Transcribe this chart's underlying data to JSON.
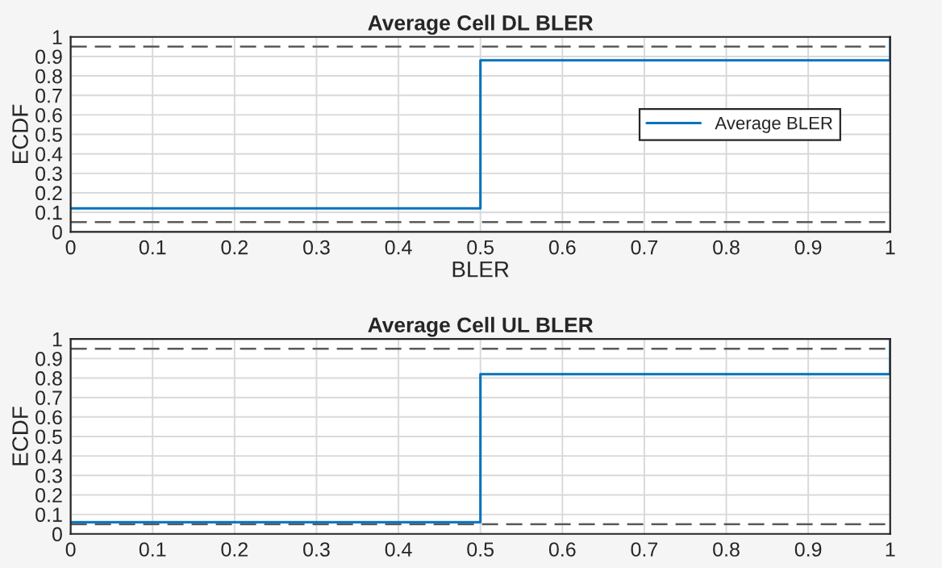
{
  "chart_data": [
    {
      "type": "step",
      "title": "Average Cell DL BLER",
      "xlabel": "BLER",
      "ylabel": "ECDF",
      "series": [
        {
          "name": "Average BLER",
          "color": "#0072bd",
          "x": [
            0,
            0.5,
            1
          ],
          "values": [
            0.12,
            0.88,
            1
          ]
        }
      ],
      "xlim": [
        0,
        1
      ],
      "xticks": [
        0,
        0.1,
        0.2,
        0.3,
        0.4,
        0.5,
        0.6,
        0.7,
        0.8,
        0.9,
        1
      ],
      "ylim": [
        0,
        1
      ],
      "yticks": [
        0,
        0.1,
        0.2,
        0.3,
        0.4,
        0.5,
        0.6,
        0.7,
        0.8,
        0.9,
        1
      ],
      "ref_lines": [
        {
          "axis": "y",
          "value": 0.05,
          "color": "#5a5a5a",
          "line_style": "dashed"
        },
        {
          "axis": "y",
          "value": 0.95,
          "color": "#5a5a5a",
          "line_style": "dashed"
        }
      ],
      "grid": true,
      "legend": "right"
    },
    {
      "type": "step",
      "title": "Average Cell UL BLER",
      "ylabel": "ECDF",
      "series": [
        {
          "color": "#0072bd",
          "x": [
            0,
            0.5,
            1
          ],
          "values": [
            0.06,
            0.82,
            1
          ]
        }
      ],
      "xlim": [
        0,
        1
      ],
      "xticks": [
        0,
        0.1,
        0.2,
        0.3,
        0.4,
        0.5,
        0.6,
        0.7,
        0.8,
        0.9,
        1
      ],
      "ylim": [
        0,
        1
      ],
      "yticks": [
        0,
        0.1,
        0.2,
        0.3,
        0.4,
        0.5,
        0.6,
        0.7,
        0.8,
        0.9,
        1
      ],
      "ref_lines": [
        {
          "axis": "y",
          "value": 0.05,
          "color": "#5a5a5a",
          "line_style": "dashed"
        },
        {
          "axis": "y",
          "value": 0.95,
          "color": "#5a5a5a",
          "line_style": "dashed"
        }
      ],
      "grid": true
    }
  ]
}
